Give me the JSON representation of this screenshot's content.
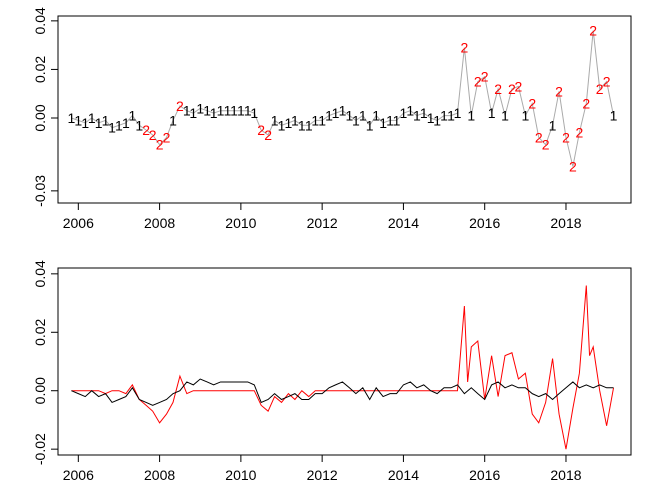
{
  "colors": {
    "series1": "#000000",
    "series2": "#ff0000",
    "guide": "#aaaaaa",
    "frame": "#000000"
  },
  "chart_data": [
    {
      "type": "line",
      "markers": "state-labels",
      "state_labels": [
        "1",
        "2"
      ],
      "x_ticks": [
        "2006",
        "2008",
        "2010",
        "2012",
        "2014",
        "2016",
        "2018"
      ],
      "y_ticks": [
        "-0.03",
        "0.00",
        "0.02",
        "0.04"
      ],
      "xlim": [
        2005.5,
        2019.6
      ],
      "ylim": [
        -0.035,
        0.042
      ],
      "grid": false
    },
    {
      "type": "line",
      "x_ticks": [
        "2006",
        "2008",
        "2010",
        "2012",
        "2014",
        "2016",
        "2018"
      ],
      "y_ticks": [
        "-0.02",
        "0.00",
        "0.02",
        "0.04"
      ],
      "xlim": [
        2005.5,
        2019.6
      ],
      "ylim": [
        -0.022,
        0.042
      ],
      "grid": false,
      "series": [
        {
          "color": "#000000",
          "x": [
            2005.83,
            2006.0,
            2006.17,
            2006.33,
            2006.5,
            2006.67,
            2006.83,
            2007.0,
            2007.17,
            2007.33,
            2007.5,
            2007.67,
            2007.83,
            2008.0,
            2008.17,
            2008.33,
            2008.5,
            2008.67,
            2008.83,
            2009.0,
            2009.17,
            2009.33,
            2009.5,
            2009.67,
            2009.83,
            2010.0,
            2010.17,
            2010.33,
            2010.5,
            2010.67,
            2010.83,
            2011.0,
            2011.17,
            2011.33,
            2011.5,
            2011.67,
            2011.83,
            2012.0,
            2012.17,
            2012.33,
            2012.5,
            2012.67,
            2012.83,
            2013.0,
            2013.17,
            2013.33,
            2013.5,
            2013.67,
            2013.83,
            2014.0,
            2014.17,
            2014.33,
            2014.5,
            2014.67,
            2014.83,
            2015.0,
            2015.17,
            2015.33,
            2015.5,
            2015.67,
            2015.83,
            2016.0,
            2016.17,
            2016.33,
            2016.5,
            2016.67,
            2016.83,
            2017.0,
            2017.17,
            2017.33,
            2017.5,
            2017.67,
            2017.83,
            2018.0,
            2018.17,
            2018.33,
            2018.5,
            2018.67,
            2018.83,
            2019.0,
            2019.17
          ],
          "y": [
            0.0,
            -0.001,
            -0.002,
            0.0,
            -0.002,
            -0.001,
            -0.004,
            -0.003,
            -0.002,
            0.001,
            -0.003,
            -0.004,
            -0.005,
            -0.004,
            -0.003,
            -0.001,
            0.0,
            0.003,
            0.002,
            0.004,
            0.003,
            0.002,
            0.003,
            0.003,
            0.003,
            0.003,
            0.003,
            0.002,
            -0.004,
            -0.003,
            -0.001,
            -0.003,
            -0.002,
            -0.001,
            -0.003,
            -0.003,
            -0.001,
            -0.001,
            0.001,
            0.002,
            0.003,
            0.001,
            -0.001,
            0.001,
            -0.003,
            0.001,
            -0.002,
            -0.001,
            -0.001,
            0.002,
            0.003,
            0.001,
            0.002,
            0.0,
            -0.001,
            0.001,
            0.001,
            0.002,
            -0.001,
            0.001,
            -0.001,
            -0.003,
            0.002,
            0.003,
            0.001,
            0.002,
            0.001,
            0.001,
            -0.001,
            -0.002,
            -0.001,
            -0.003,
            -0.001,
            0.001,
            0.003,
            0.001,
            0.002,
            0.001,
            0.002,
            0.001,
            0.001
          ]
        },
        {
          "color": "#ff0000",
          "x": [
            2005.83,
            2006.0,
            2006.17,
            2006.33,
            2006.5,
            2006.67,
            2006.83,
            2007.0,
            2007.17,
            2007.33,
            2007.5,
            2007.67,
            2007.83,
            2008.0,
            2008.17,
            2008.33,
            2008.5,
            2008.67,
            2008.83,
            2009.0,
            2009.17,
            2009.33,
            2009.5,
            2009.67,
            2009.83,
            2010.0,
            2010.17,
            2010.33,
            2010.5,
            2010.67,
            2010.83,
            2011.0,
            2011.17,
            2011.33,
            2011.5,
            2011.67,
            2011.83,
            2012.0,
            2012.17,
            2012.33,
            2012.5,
            2012.67,
            2012.83,
            2013.0,
            2013.17,
            2013.33,
            2013.5,
            2013.67,
            2013.83,
            2014.0,
            2014.17,
            2014.33,
            2014.5,
            2014.67,
            2014.83,
            2015.0,
            2015.17,
            2015.33,
            2015.5,
            2015.58,
            2015.67,
            2015.83,
            2016.0,
            2016.17,
            2016.33,
            2016.5,
            2016.67,
            2016.83,
            2017.0,
            2017.17,
            2017.33,
            2017.5,
            2017.67,
            2017.83,
            2018.0,
            2018.17,
            2018.33,
            2018.5,
            2018.58,
            2018.67,
            2018.83,
            2019.0,
            2019.17
          ],
          "y": [
            0.0,
            0.0,
            0.0,
            0.0,
            0.0,
            -0.001,
            0.0,
            0.0,
            -0.001,
            0.002,
            -0.003,
            -0.005,
            -0.007,
            -0.011,
            -0.008,
            -0.004,
            0.005,
            -0.001,
            0.0,
            0.0,
            0.0,
            0.0,
            0.0,
            0.0,
            0.0,
            0.0,
            0.0,
            0.0,
            -0.005,
            -0.007,
            -0.002,
            -0.004,
            -0.001,
            -0.003,
            0.0,
            -0.002,
            0.0,
            0.0,
            0.0,
            0.0,
            0.0,
            0.0,
            0.0,
            0.0,
            0.0,
            0.0,
            0.0,
            0.0,
            0.0,
            0.0,
            0.0,
            0.0,
            0.0,
            0.0,
            0.0,
            0.0,
            0.0,
            0.0,
            0.029,
            0.003,
            0.015,
            0.017,
            -0.003,
            0.012,
            -0.002,
            0.012,
            0.013,
            0.004,
            0.006,
            -0.008,
            -0.011,
            -0.004,
            0.011,
            -0.008,
            -0.02,
            -0.006,
            0.006,
            0.036,
            0.012,
            0.015,
            0.0,
            -0.012,
            0.001
          ]
        }
      ]
    }
  ]
}
